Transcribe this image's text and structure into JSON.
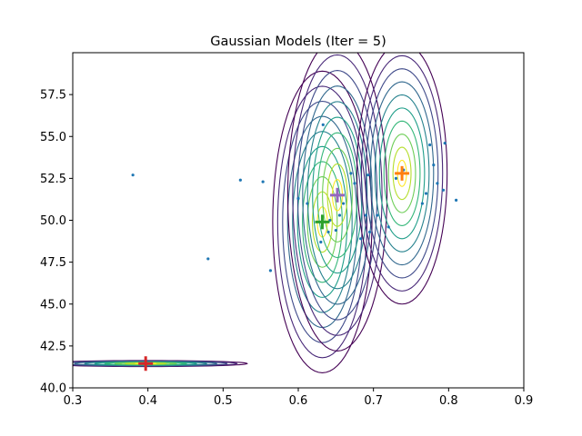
{
  "chart_data": {
    "type": "scatter",
    "title": "Gaussian Models (Iter = 5)",
    "xlabel": "",
    "ylabel": "",
    "xlim": [
      0.3,
      0.9
    ],
    "ylim": [
      40.0,
      60.0
    ],
    "x_ticks": [
      "0.3",
      "0.4",
      "0.5",
      "0.6",
      "0.7",
      "0.8",
      "0.9"
    ],
    "y_ticks": [
      "40.0",
      "42.5",
      "45.0",
      "47.5",
      "50.0",
      "52.5",
      "55.0",
      "57.5"
    ],
    "x_tick_values": [
      0.3,
      0.4,
      0.5,
      0.6,
      0.7,
      0.8,
      0.9
    ],
    "y_tick_values": [
      40.0,
      42.5,
      45.0,
      47.5,
      50.0,
      52.5,
      55.0,
      57.5
    ],
    "grid": false,
    "points": {
      "color": "#1f77b4",
      "x": [
        0.38,
        0.48,
        0.523,
        0.553,
        0.563,
        0.6,
        0.612,
        0.63,
        0.633,
        0.64,
        0.642,
        0.65,
        0.655,
        0.66,
        0.67,
        0.675,
        0.683,
        0.69,
        0.693,
        0.695,
        0.705,
        0.72,
        0.73,
        0.74,
        0.765,
        0.77,
        0.775,
        0.78,
        0.785,
        0.793,
        0.795,
        0.81
      ],
      "y": [
        52.7,
        47.7,
        52.4,
        52.3,
        47.0,
        51.3,
        51.0,
        48.7,
        55.7,
        49.3,
        50.0,
        49.4,
        50.3,
        51.0,
        52.8,
        52.2,
        48.9,
        50.3,
        52.7,
        49.3,
        50.3,
        49.6,
        52.5,
        53.0,
        51.0,
        51.6,
        54.5,
        53.3,
        52.2,
        51.8,
        54.6,
        51.2
      ]
    },
    "components": [
      {
        "mean_x": 0.397,
        "mean_y": 41.45,
        "sx": 0.045,
        "sy": 0.06,
        "color": "#d62728"
      },
      {
        "mean_x": 0.632,
        "mean_y": 49.9,
        "sx": 0.022,
        "sy": 3.0,
        "color": "#2ca02c"
      },
      {
        "mean_x": 0.652,
        "mean_y": 51.5,
        "sx": 0.022,
        "sy": 3.1,
        "color": "#9467bd"
      },
      {
        "mean_x": 0.738,
        "mean_y": 52.8,
        "sx": 0.02,
        "sy": 2.6,
        "color": "#ff7f0e"
      }
    ],
    "contour_colors": [
      "#440154",
      "#482878",
      "#3e4989",
      "#31688e",
      "#26828e",
      "#1f9e89",
      "#35b779",
      "#6ece58",
      "#b5de2b",
      "#fde725"
    ]
  }
}
